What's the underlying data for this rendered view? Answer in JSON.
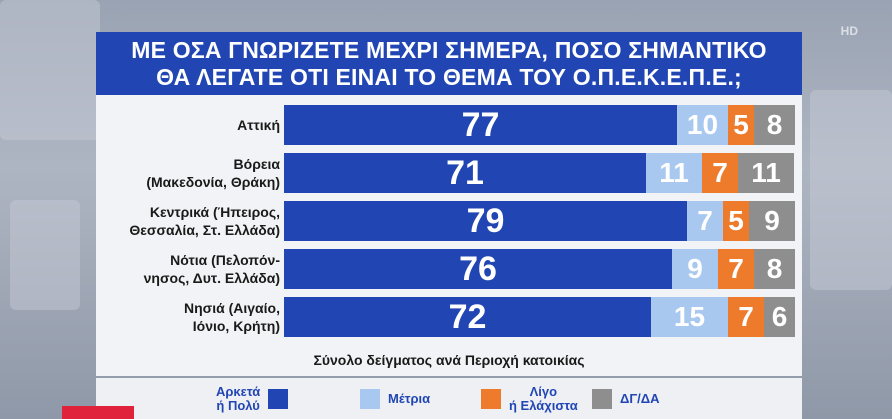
{
  "title_line1": "ΜΕ ΟΣΑ ΓΝΩΡΙΖΕΤΕ ΜΕΧΡΙ ΣΗΜΕΡΑ, ΠΟΣΟ ΣΗΜΑΝΤΙΚΟ",
  "title_line2": "ΘΑ ΛΕΓΑΤΕ ΟΤΙ ΕΙΝΑΙ ΤΟ ΘΕΜΑ ΤΟΥ Ο.Π.Ε.Κ.Ε.Π.Ε.;",
  "subtitle": "Σύνολο δείγματος ανά Περιοχή κατοικίας",
  "logo": "HD",
  "colors": {
    "very": "#2146b4",
    "moderate": "#a8c8f0",
    "little": "#ee7a2b",
    "dk": "#8e8e8e",
    "moderate_text": "#ffffff"
  },
  "legend": [
    {
      "label": "Αρκετά\nή Πολύ",
      "color": "#2146b4"
    },
    {
      "label": "Μέτρια",
      "color": "#a8c8f0"
    },
    {
      "label": "Λίγο\nή Ελάχιστα",
      "color": "#ee7a2b"
    },
    {
      "label": "ΔΓ/ΔΑ",
      "color": "#8e8e8e"
    }
  ],
  "chart_data": {
    "type": "bar",
    "stacked": true,
    "orientation": "horizontal",
    "title": "ΜΕ ΟΣΑ ΓΝΩΡΙΖΕΤΕ ΜΕΧΡΙ ΣΗΜΕΡΑ, ΠΟΣΟ ΣΗΜΑΝΤΙΚΟ ΘΑ ΛΕΓΑΤΕ ΟΤΙ ΕΙΝΑΙ ΤΟ ΘΕΜΑ ΤΟΥ Ο.Π.Ε.Κ.Ε.Π.Ε.;",
    "categories": [
      "Αττική",
      "Βόρεια\n(Μακεδονία, Θράκη)",
      "Κεντρικά (Ήπειρος,\nΘεσσαλία, Στ. Ελλάδα)",
      "Νότια (Πελοπόν-\nνησος, Δυτ. Ελλάδα)",
      "Νησιά (Αιγαίο,\nΙόνιο, Κρήτη)"
    ],
    "series": [
      {
        "name": "Αρκετά ή Πολύ",
        "values": [
          77,
          71,
          79,
          76,
          72
        ]
      },
      {
        "name": "Μέτρια",
        "values": [
          10,
          11,
          7,
          9,
          15
        ]
      },
      {
        "name": "Λίγο ή Ελάχιστα",
        "values": [
          5,
          7,
          5,
          7,
          7
        ]
      },
      {
        "name": "ΔΓ/ΔΑ",
        "values": [
          8,
          11,
          9,
          8,
          6
        ]
      }
    ],
    "xlim": [
      0,
      100
    ],
    "legend_position": "bottom",
    "grid": false
  }
}
